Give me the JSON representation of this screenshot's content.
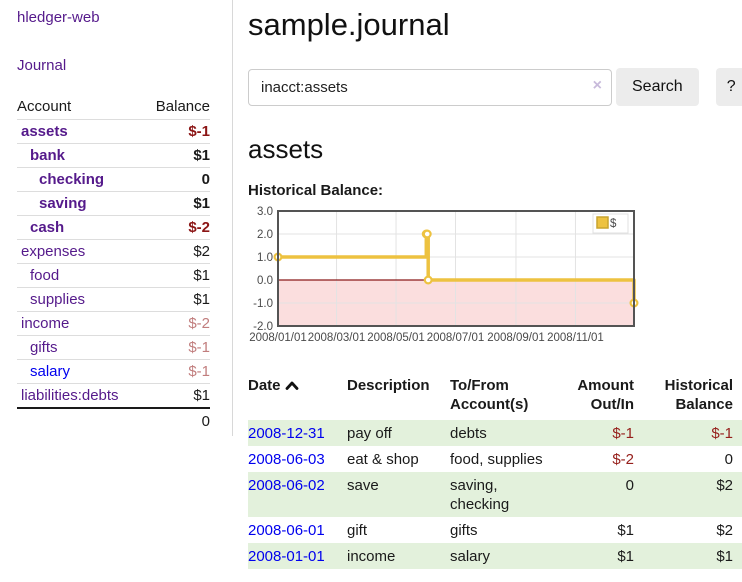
{
  "app": {
    "title": "hledger-web"
  },
  "sidebar": {
    "nav": {
      "journal": "Journal"
    },
    "table": {
      "account_header": "Account",
      "balance_header": "Balance",
      "total": "0"
    },
    "accounts": [
      {
        "name": "assets",
        "balance": "$-1",
        "indent": 0
      },
      {
        "name": "bank",
        "balance": "$1",
        "indent": 1
      },
      {
        "name": "checking",
        "balance": "0",
        "indent": 2
      },
      {
        "name": "saving",
        "balance": "$1",
        "indent": 2
      },
      {
        "name": "cash",
        "balance": "$-2",
        "indent": 1
      },
      {
        "name": "expenses",
        "balance": "$2",
        "indent": 0
      },
      {
        "name": "food",
        "balance": "$1",
        "indent": 1
      },
      {
        "name": "supplies",
        "balance": "$1",
        "indent": 1
      },
      {
        "name": "income",
        "balance": "$-2",
        "indent": 0
      },
      {
        "name": "gifts",
        "balance": "$-1",
        "indent": 1
      },
      {
        "name": "salary",
        "balance": "$-1",
        "indent": 1
      },
      {
        "name": "liabilities:debts",
        "balance": "$1",
        "indent": 0
      }
    ]
  },
  "main": {
    "title": "sample.journal",
    "search": {
      "value": "inacct:assets",
      "clear_icon": "×",
      "button_label": "Search",
      "help_label": "?"
    },
    "account_heading": "assets",
    "chart_label": "Historical Balance:"
  },
  "chart_data": {
    "type": "line",
    "title": "Historical Balance",
    "steps": true,
    "series": [
      {
        "name": "$",
        "x": [
          "2008-01-01",
          "2008-06-01",
          "2008-06-02",
          "2008-06-03",
          "2008-12-31"
        ],
        "x_days": [
          0,
          152,
          153,
          154,
          365
        ],
        "values": [
          1,
          2,
          2,
          0,
          -1
        ]
      }
    ],
    "x_tick_labels": [
      "2008/01/01",
      "2008/03/01",
      "2008/05/01",
      "2008/07/01",
      "2008/09/01",
      "2008/11/01"
    ],
    "tick_days": [
      0,
      60,
      121,
      182,
      244,
      305
    ],
    "x_range_days": [
      0,
      365
    ],
    "y_ticks": [
      3.0,
      2.0,
      1.0,
      0.0,
      -1.0,
      -2.0
    ],
    "ylim": [
      -2,
      3
    ],
    "grid": true,
    "legend": {
      "label": "$",
      "position": "top-right"
    },
    "style": {
      "line_color": "#EDC240",
      "negative_fill": "#fbdede",
      "zero_line_color": "#8b1a1a",
      "grid_color": "#e3e3e3",
      "border_color": "#545454"
    }
  },
  "register": {
    "headers": [
      "Date",
      "Description",
      "To/From Account(s)",
      "Amount Out/In",
      "Historical Balance"
    ],
    "rows": [
      {
        "date": "2008-12-31",
        "description": "pay off",
        "accounts": "debts",
        "amount": "$-1",
        "balance": "$-1"
      },
      {
        "date": "2008-06-03",
        "description": "eat & shop",
        "accounts": "food, supplies",
        "amount": "$-2",
        "balance": "0"
      },
      {
        "date": "2008-06-02",
        "description": "save",
        "accounts": "saving, checking",
        "amount": "0",
        "balance": "$2"
      },
      {
        "date": "2008-06-01",
        "description": "gift",
        "accounts": "gifts",
        "amount": "$1",
        "balance": "$2"
      },
      {
        "date": "2008-01-01",
        "description": "income",
        "accounts": "salary",
        "amount": "$1",
        "balance": "$1"
      }
    ]
  },
  "colors": {
    "link_purple": "#551a8b",
    "link_blue": "#0000ee",
    "negative_strong": "#8b1515",
    "negative_soft": "#c17d7d",
    "row_stripe_green": "#e3f1dc",
    "chart_line_yellow": "#EDC240"
  }
}
